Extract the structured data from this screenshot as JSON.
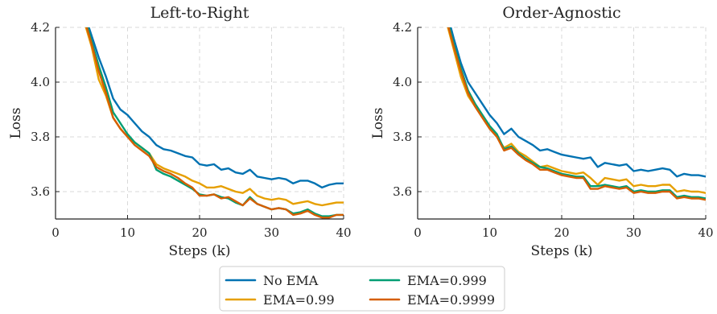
{
  "chart_data": [
    {
      "type": "line",
      "title": "Left-to-Right",
      "xlabel": "Steps (k)",
      "ylabel": "Loss",
      "xlim": [
        0,
        40
      ],
      "ylim": [
        3.5,
        4.2
      ],
      "xticks": [
        "0",
        "10",
        "20",
        "30",
        "40"
      ],
      "yticks": [
        "3.6",
        "3.8",
        "4.0",
        "4.2"
      ],
      "grid": true,
      "x": [
        4,
        5,
        6,
        7,
        8,
        9,
        10,
        11,
        12,
        13,
        14,
        15,
        16,
        17,
        18,
        19,
        20,
        21,
        22,
        23,
        24,
        25,
        26,
        27,
        28,
        29,
        30,
        31,
        32,
        33,
        34,
        35,
        36,
        37,
        38,
        39,
        40
      ],
      "series": [
        {
          "name": "No EMA",
          "color": "#0072b2",
          "values": [
            4.25,
            4.17,
            4.09,
            4.02,
            3.94,
            3.9,
            3.88,
            3.85,
            3.82,
            3.8,
            3.77,
            3.755,
            3.75,
            3.74,
            3.73,
            3.725,
            3.7,
            3.695,
            3.7,
            3.68,
            3.685,
            3.67,
            3.665,
            3.68,
            3.655,
            3.65,
            3.645,
            3.65,
            3.645,
            3.63,
            3.64,
            3.64,
            3.63,
            3.615,
            3.625,
            3.63,
            3.63
          ]
        },
        {
          "name": "EMA=0.99",
          "color": "#e69f00",
          "values": [
            4.22,
            4.13,
            4.01,
            3.95,
            3.87,
            3.83,
            3.8,
            3.78,
            3.76,
            3.74,
            3.7,
            3.685,
            3.675,
            3.665,
            3.655,
            3.64,
            3.63,
            3.615,
            3.615,
            3.62,
            3.61,
            3.6,
            3.595,
            3.61,
            3.585,
            3.575,
            3.57,
            3.575,
            3.57,
            3.555,
            3.56,
            3.565,
            3.555,
            3.55,
            3.555,
            3.56,
            3.56
          ]
        },
        {
          "name": "EMA=0.999",
          "color": "#009e73",
          "values": [
            4.24,
            4.15,
            4.06,
            3.98,
            3.89,
            3.85,
            3.81,
            3.78,
            3.76,
            3.74,
            3.68,
            3.665,
            3.655,
            3.64,
            3.625,
            3.61,
            3.59,
            3.585,
            3.59,
            3.58,
            3.575,
            3.56,
            3.55,
            3.58,
            3.555,
            3.545,
            3.535,
            3.54,
            3.535,
            3.52,
            3.525,
            3.535,
            3.52,
            3.51,
            3.51,
            3.515,
            3.515
          ]
        },
        {
          "name": "EMA=0.9999",
          "color": "#d55e00",
          "values": [
            4.23,
            4.14,
            4.04,
            3.96,
            3.87,
            3.83,
            3.8,
            3.77,
            3.75,
            3.73,
            3.69,
            3.675,
            3.665,
            3.65,
            3.63,
            3.615,
            3.585,
            3.585,
            3.59,
            3.575,
            3.58,
            3.565,
            3.55,
            3.575,
            3.555,
            3.545,
            3.535,
            3.54,
            3.535,
            3.515,
            3.52,
            3.53,
            3.515,
            3.505,
            3.505,
            3.515,
            3.515
          ]
        }
      ]
    },
    {
      "type": "line",
      "title": "Order-Agnostic",
      "xlabel": "Steps (k)",
      "ylabel": "Loss",
      "xlim": [
        0,
        40
      ],
      "ylim": [
        3.5,
        4.2
      ],
      "xticks": [
        "0",
        "10",
        "20",
        "30",
        "40"
      ],
      "yticks": [
        "3.6",
        "3.8",
        "4.0",
        "4.2"
      ],
      "grid": true,
      "x": [
        4,
        5,
        6,
        7,
        8,
        9,
        10,
        11,
        12,
        13,
        14,
        15,
        16,
        17,
        18,
        19,
        20,
        21,
        22,
        23,
        24,
        25,
        26,
        27,
        28,
        29,
        30,
        31,
        32,
        33,
        34,
        35,
        36,
        37,
        38,
        39,
        40
      ],
      "series": [
        {
          "name": "No EMA",
          "color": "#0072b2",
          "values": [
            4.26,
            4.16,
            4.07,
            4.0,
            3.96,
            3.92,
            3.88,
            3.85,
            3.81,
            3.83,
            3.8,
            3.785,
            3.77,
            3.75,
            3.755,
            3.745,
            3.735,
            3.73,
            3.725,
            3.72,
            3.725,
            3.69,
            3.705,
            3.7,
            3.695,
            3.7,
            3.675,
            3.68,
            3.675,
            3.68,
            3.685,
            3.68,
            3.655,
            3.665,
            3.66,
            3.66,
            3.655
          ]
        },
        {
          "name": "EMA=0.99",
          "color": "#e69f00",
          "values": [
            4.22,
            4.12,
            4.02,
            3.95,
            3.91,
            3.87,
            3.83,
            3.8,
            3.76,
            3.775,
            3.745,
            3.73,
            3.71,
            3.69,
            3.695,
            3.685,
            3.675,
            3.67,
            3.665,
            3.67,
            3.65,
            3.625,
            3.65,
            3.645,
            3.64,
            3.645,
            3.62,
            3.625,
            3.62,
            3.62,
            3.625,
            3.625,
            3.6,
            3.605,
            3.6,
            3.6,
            3.595
          ]
        },
        {
          "name": "EMA=0.999",
          "color": "#009e73",
          "values": [
            4.24,
            4.14,
            4.05,
            3.97,
            3.92,
            3.88,
            3.84,
            3.81,
            3.755,
            3.765,
            3.74,
            3.72,
            3.705,
            3.69,
            3.685,
            3.675,
            3.665,
            3.66,
            3.655,
            3.655,
            3.62,
            3.62,
            3.625,
            3.62,
            3.615,
            3.62,
            3.6,
            3.605,
            3.6,
            3.6,
            3.605,
            3.605,
            3.58,
            3.585,
            3.58,
            3.58,
            3.575
          ]
        },
        {
          "name": "EMA=0.9999",
          "color": "#d55e00",
          "values": [
            4.23,
            4.13,
            4.04,
            3.96,
            3.91,
            3.87,
            3.83,
            3.8,
            3.75,
            3.76,
            3.735,
            3.715,
            3.7,
            3.68,
            3.68,
            3.67,
            3.66,
            3.655,
            3.65,
            3.65,
            3.61,
            3.61,
            3.62,
            3.615,
            3.61,
            3.615,
            3.595,
            3.6,
            3.595,
            3.595,
            3.6,
            3.6,
            3.575,
            3.58,
            3.575,
            3.575,
            3.57
          ]
        }
      ]
    }
  ],
  "legend": {
    "placement": "bottom-center",
    "items": [
      {
        "label": "No EMA",
        "color": "#0072b2"
      },
      {
        "label": "EMA=0.99",
        "color": "#e69f00"
      },
      {
        "label": "EMA=0.999",
        "color": "#009e73"
      },
      {
        "label": "EMA=0.9999",
        "color": "#d55e00"
      }
    ]
  }
}
